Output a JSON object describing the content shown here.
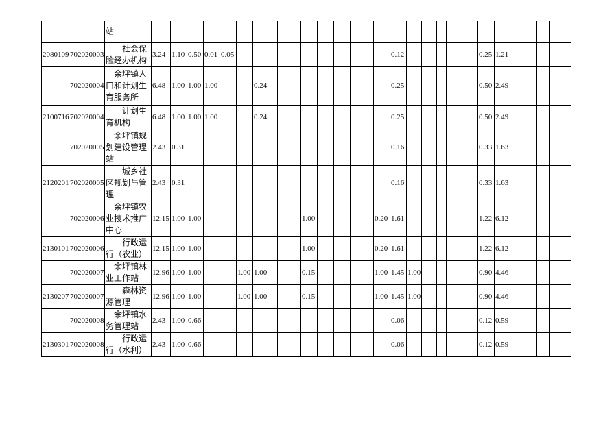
{
  "table": {
    "rows": [
      [
        null,
        null,
        "站",
        null,
        null,
        null,
        null,
        null,
        null,
        null,
        null,
        null,
        null,
        null,
        null,
        null,
        null,
        null,
        null,
        null,
        null,
        null,
        null,
        null,
        null,
        null,
        null,
        null,
        null,
        null,
        null
      ],
      [
        "2080109",
        "702020003",
        "社会保险经办机构",
        "3.24",
        "1.10",
        "0.50",
        "0.01",
        "0.05",
        null,
        null,
        null,
        null,
        null,
        null,
        null,
        null,
        null,
        null,
        "0.12",
        null,
        null,
        null,
        null,
        null,
        null,
        "0.25",
        "1.21",
        null,
        null,
        null,
        null
      ],
      [
        null,
        "702020004",
        "余坪镇人口和计划生育服务所",
        "6.48",
        "1.00",
        "1.00",
        "1.00",
        null,
        null,
        "0.24",
        null,
        null,
        null,
        null,
        null,
        null,
        null,
        null,
        "0.25",
        null,
        null,
        null,
        null,
        null,
        null,
        "0.50",
        "2.49",
        null,
        null,
        null,
        null
      ],
      [
        "2100716",
        "702020004",
        "计划生育机构",
        "6.48",
        "1.00",
        "1.00",
        "1.00",
        null,
        null,
        "0.24",
        null,
        null,
        null,
        null,
        null,
        null,
        null,
        null,
        "0.25",
        null,
        null,
        null,
        null,
        null,
        null,
        "0.50",
        "2.49",
        null,
        null,
        null,
        null
      ],
      [
        null,
        "702020005",
        "余坪镇规划建设管理站",
        "2.43",
        "0.31",
        null,
        null,
        null,
        null,
        null,
        null,
        null,
        null,
        null,
        null,
        null,
        null,
        null,
        "0.16",
        null,
        null,
        null,
        null,
        null,
        null,
        "0.33",
        "1.63",
        null,
        null,
        null,
        null
      ],
      [
        "2120201",
        "702020005",
        "城乡社区规划与管理",
        "2.43",
        "0.31",
        null,
        null,
        null,
        null,
        null,
        null,
        null,
        null,
        null,
        null,
        null,
        null,
        null,
        "0.16",
        null,
        null,
        null,
        null,
        null,
        null,
        "0.33",
        "1.63",
        null,
        null,
        null,
        null
      ],
      [
        null,
        "702020006",
        "余坪镇农业技术推广中心",
        "12.15",
        "1.00",
        "1.00",
        null,
        null,
        null,
        null,
        null,
        null,
        null,
        "1.00",
        null,
        null,
        null,
        "0.20",
        "1.61",
        null,
        null,
        null,
        null,
        null,
        null,
        "1.22",
        "6.12",
        null,
        null,
        null,
        null
      ],
      [
        "2130101",
        "702020006",
        "行政运行（农业）",
        "12.15",
        "1.00",
        "1.00",
        null,
        null,
        null,
        null,
        null,
        null,
        null,
        "1.00",
        null,
        null,
        null,
        "0.20",
        "1.61",
        null,
        null,
        null,
        null,
        null,
        null,
        "1.22",
        "6.12",
        null,
        null,
        null,
        null
      ],
      [
        null,
        "702020007",
        "余坪镇林业工作站",
        "12.96",
        "1.00",
        "1.00",
        null,
        null,
        "1.00",
        "1.00",
        null,
        null,
        null,
        "0.15",
        null,
        null,
        null,
        "1.00",
        "1.45",
        "1.00",
        null,
        null,
        null,
        null,
        null,
        "0.90",
        "4.46",
        null,
        null,
        null,
        null
      ],
      [
        "2130207",
        "702020007",
        "森林资源管理",
        "12.96",
        "1.00",
        "1.00",
        null,
        null,
        "1.00",
        "1.00",
        null,
        null,
        null,
        "0.15",
        null,
        null,
        null,
        "1.00",
        "1.45",
        "1.00",
        null,
        null,
        null,
        null,
        null,
        "0.90",
        "4.46",
        null,
        null,
        null,
        null
      ],
      [
        null,
        "702020008",
        "余坪镇水务管理站",
        "2.43",
        "1.00",
        "0.66",
        null,
        null,
        null,
        null,
        null,
        null,
        null,
        null,
        null,
        null,
        null,
        null,
        "0.06",
        null,
        null,
        null,
        null,
        null,
        null,
        "0.12",
        "0.59",
        null,
        null,
        null,
        null
      ],
      [
        "2130301",
        "702020008",
        "行政运行（水利）",
        "2.43",
        "1.00",
        "0.66",
        null,
        null,
        null,
        null,
        null,
        null,
        null,
        null,
        null,
        null,
        null,
        null,
        "0.06",
        null,
        null,
        null,
        null,
        null,
        null,
        "0.12",
        "0.59",
        null,
        null,
        null,
        null
      ]
    ]
  }
}
